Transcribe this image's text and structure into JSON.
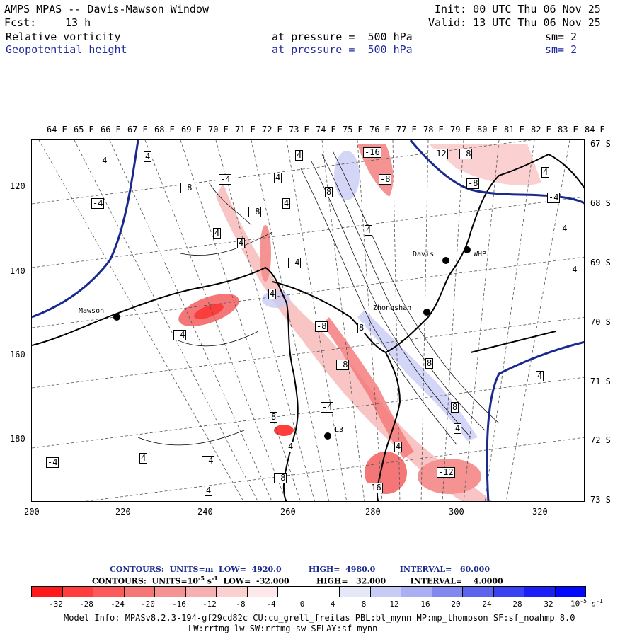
{
  "header": {
    "title": "AMPS MPAS -- Davis-Mawson Window",
    "init": "Init: 00 UTC Thu 06 Nov 25",
    "forecast_label": "Fcst:",
    "forecast_value": "13 h",
    "valid": "Valid: 13 UTC Thu 06 Nov 25",
    "field1_name": "Relative vorticity",
    "field1_level": "at pressure =  500 hPa",
    "field1_smooth": "sm= 2",
    "field2_name": "Geopotential height",
    "field2_level": "at pressure =  500 hPa",
    "field2_smooth": "sm= 2"
  },
  "map": {
    "lon_labels": [
      "64 E",
      "65 E",
      "66 E",
      "67 E",
      "68 E",
      "69 E",
      "70 E",
      "71 E",
      "72 E",
      "73 E",
      "74 E",
      "75 E",
      "76 E",
      "77 E",
      "78 E",
      "79 E",
      "80 E",
      "81 E",
      "82 E",
      "83 E",
      "84 E"
    ],
    "lat_labels": [
      "67 S",
      "68 S",
      "69 S",
      "70 S",
      "71 S",
      "72 S",
      "73 S"
    ],
    "x_ticks": [
      "200",
      "220",
      "240",
      "260",
      "280",
      "300",
      "320"
    ],
    "y_ticks": [
      "120",
      "140",
      "160",
      "180"
    ],
    "stations": [
      {
        "name": "Mawson"
      },
      {
        "name": "Davis"
      },
      {
        "name": "WHP"
      },
      {
        "name": "Zhongshan"
      },
      {
        "name": "L3"
      }
    ],
    "contour_labels": [
      "-4",
      "4",
      "-4",
      "-16",
      "-12",
      "-8",
      "-8",
      "-8",
      "4",
      "4",
      "-4",
      "-8",
      "4",
      "4",
      "8",
      "-8",
      "-4",
      "4",
      "4",
      "-4",
      "4",
      "-4",
      "-4",
      "-8",
      "8",
      "8",
      "-8",
      "4",
      "8",
      "4",
      "-4",
      "-4",
      "8",
      "4",
      "4",
      "-4",
      "4",
      "-4",
      "-8",
      "-12",
      "-16",
      "4",
      "4"
    ],
    "colors": {
      "geopotential": "#1a2a8c",
      "coast": "#000000",
      "positive": "#e8393a",
      "negative": "#4a5cd6"
    }
  },
  "legend": {
    "contours_line1": "CONTOURS:  UNITS=m  LOW=  4920.0          HIGH=  4980.0         INTERVAL=   60.000",
    "contours_line2_a": "CONTOURS:  UNITS=10",
    "contours_line2_exp": "-5",
    "contours_line2_b": " s",
    "contours_line2_exp2": "-1",
    "contours_line2_c": "  LOW=  -32.000          HIGH=   32.000         INTERVAL=    4.0000",
    "colorbar_labels": [
      "-32",
      "-28",
      "-24",
      "-20",
      "-16",
      "-12",
      "-8",
      "-4",
      "0",
      "4",
      "8",
      "12",
      "16",
      "20",
      "24",
      "28",
      "32"
    ],
    "colorbar_units": "10",
    "colorbar_units_exp": "-5",
    "colorbar_units_b": " s",
    "colorbar_units_exp2": "-1",
    "colorbar_colors": [
      "#ff1a1a",
      "#ff3d3d",
      "#fa5a5a",
      "#f57676",
      "#f59292",
      "#f7b0b0",
      "#fad0d0",
      "#fde9e9",
      "#ffffff",
      "#ffffff",
      "#e6e8fa",
      "#c8ccf5",
      "#a8aff2",
      "#8189ef",
      "#5c64ee",
      "#3a41f2",
      "#1a20f5",
      "#0008ff"
    ]
  },
  "footer": {
    "model_info": "Model Info: MPASv8.2.3-194-gf29cd82c CU:cu_grell_freitas PBL:bl_mynn MP:mp_thompson SF:sf_noahmp 8.0",
    "model_info2": "LW:rrtmg_lw SW:rrtmg_sw SFLAY:sf_mynn"
  }
}
